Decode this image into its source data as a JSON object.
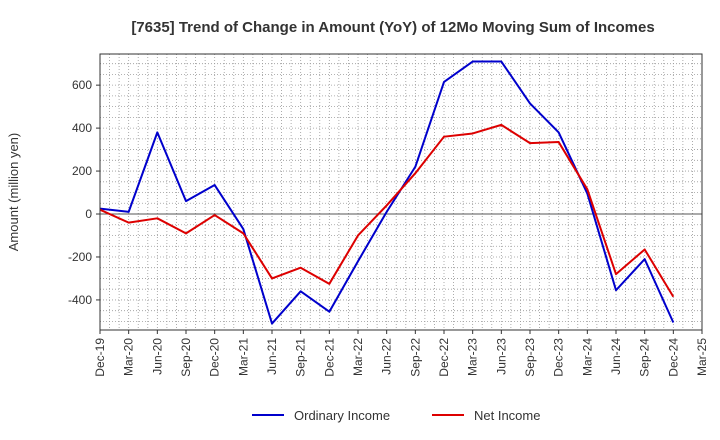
{
  "chart_data": {
    "type": "line",
    "title": "[7635]  Trend of Change in Amount (YoY) of 12Mo Moving Sum of Incomes",
    "xlabel": "",
    "ylabel": "Amount (million yen)",
    "ylim": [
      -540,
      745
    ],
    "yticks": [
      -400,
      -200,
      0,
      200,
      400,
      600
    ],
    "ytick_labels": [
      "-400",
      "-200",
      "0",
      "200",
      "400",
      "600"
    ],
    "categories": [
      "Dec-19",
      "Mar-20",
      "Jun-20",
      "Sep-20",
      "Dec-20",
      "Mar-21",
      "Jun-21",
      "Sep-21",
      "Dec-21",
      "Mar-22",
      "Jun-22",
      "Sep-22",
      "Dec-22",
      "Mar-23",
      "Jun-23",
      "Sep-23",
      "Dec-23",
      "Mar-24",
      "Jun-24",
      "Sep-24",
      "Dec-24",
      "Mar-25"
    ],
    "grid": true,
    "legend_position": "bottom-center",
    "series": [
      {
        "name": "Ordinary Income",
        "color": "#0000cc",
        "values": [
          25,
          10,
          380,
          60,
          135,
          -70,
          -510,
          -360,
          -455,
          -220,
          10,
          220,
          615,
          710,
          710,
          515,
          380,
          95,
          -355,
          -210,
          -505,
          null
        ]
      },
      {
        "name": "Net Income",
        "color": "#dd0000",
        "values": [
          20,
          -40,
          -20,
          -90,
          -5,
          -90,
          -300,
          -250,
          -325,
          -100,
          40,
          190,
          360,
          375,
          415,
          330,
          335,
          115,
          -280,
          -165,
          -385,
          null
        ]
      }
    ]
  }
}
